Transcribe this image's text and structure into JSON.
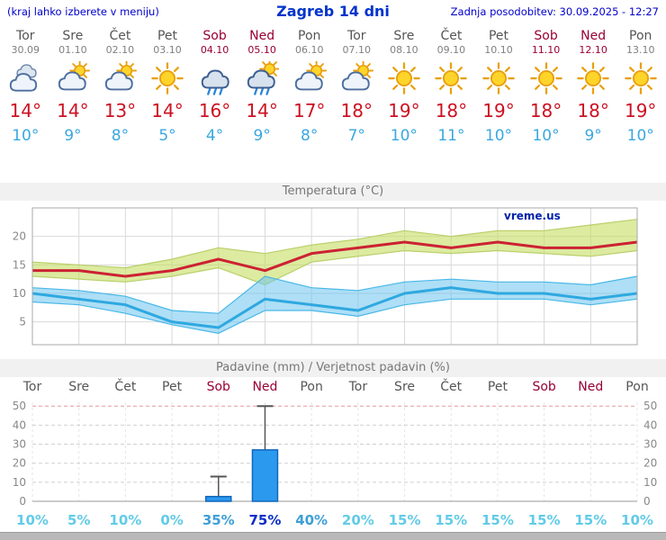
{
  "header": {
    "menu_note": "(kraj lahko izberete v meniju)",
    "title": "Zagreb 14 dni",
    "last_update": "Zadnja posodobitev: 30.09.2025 - 12:27"
  },
  "days": [
    {
      "name": "Tor",
      "date": "30.09",
      "weekend": false,
      "icon": "cloudy",
      "high": "14°",
      "low": "10°"
    },
    {
      "name": "Sre",
      "date": "01.10",
      "weekend": false,
      "icon": "partly",
      "high": "14°",
      "low": "9°"
    },
    {
      "name": "Čet",
      "date": "02.10",
      "weekend": false,
      "icon": "partly",
      "high": "13°",
      "low": "8°"
    },
    {
      "name": "Pet",
      "date": "03.10",
      "weekend": false,
      "icon": "sun",
      "high": "14°",
      "low": "5°"
    },
    {
      "name": "Sob",
      "date": "04.10",
      "weekend": true,
      "icon": "rain",
      "high": "16°",
      "low": "4°"
    },
    {
      "name": "Ned",
      "date": "05.10",
      "weekend": true,
      "icon": "rain-sun",
      "high": "14°",
      "low": "9°"
    },
    {
      "name": "Pon",
      "date": "06.10",
      "weekend": false,
      "icon": "partly",
      "high": "17°",
      "low": "8°"
    },
    {
      "name": "Tor",
      "date": "07.10",
      "weekend": false,
      "icon": "partly",
      "high": "18°",
      "low": "7°"
    },
    {
      "name": "Sre",
      "date": "08.10",
      "weekend": false,
      "icon": "sun",
      "high": "19°",
      "low": "10°"
    },
    {
      "name": "Čet",
      "date": "09.10",
      "weekend": false,
      "icon": "sun",
      "high": "18°",
      "low": "11°"
    },
    {
      "name": "Pet",
      "date": "10.10",
      "weekend": false,
      "icon": "sun",
      "high": "19°",
      "low": "10°"
    },
    {
      "name": "Sob",
      "date": "11.10",
      "weekend": true,
      "icon": "sun",
      "high": "18°",
      "low": "10°"
    },
    {
      "name": "Ned",
      "date": "12.10",
      "weekend": true,
      "icon": "sun",
      "high": "18°",
      "low": "9°"
    },
    {
      "name": "Pon",
      "date": "13.10",
      "weekend": false,
      "icon": "sun",
      "high": "19°",
      "low": "10°"
    }
  ],
  "chart_data": [
    {
      "type": "line",
      "title": "Temperatura (°C)",
      "categories": [
        "Tor",
        "Sre",
        "Čet",
        "Pet",
        "Sob",
        "Ned",
        "Pon",
        "Tor",
        "Sre",
        "Čet",
        "Pet",
        "Sob",
        "Ned",
        "Pon"
      ],
      "ylim": [
        1,
        25
      ],
      "yticks": [
        5,
        10,
        15,
        20
      ],
      "legend_position": "none",
      "grid": true,
      "series": [
        {
          "name": "max temperatura",
          "color": "#cc2233",
          "width": 3,
          "values": [
            14,
            14,
            13,
            14,
            16,
            14,
            17,
            18,
            19,
            18,
            19,
            18,
            18,
            19
          ]
        },
        {
          "name": "min temperatura",
          "color": "#2fa8e0",
          "width": 3,
          "values": [
            10,
            9,
            8,
            5,
            4,
            9,
            8,
            7,
            10,
            11,
            10,
            10,
            9,
            10
          ]
        }
      ],
      "bands": [
        {
          "name": "max-range",
          "fill": "rgba(196,222,96,0.60)",
          "edge": "#b9cf6a",
          "upper": [
            15.5,
            15,
            14.5,
            16,
            18,
            17,
            18.5,
            19.5,
            21,
            20,
            21,
            21,
            22,
            23
          ],
          "lower": [
            13,
            12.5,
            12,
            13,
            14.5,
            11.5,
            15.5,
            16.5,
            17.5,
            17,
            17.5,
            17,
            16.5,
            17.5
          ]
        },
        {
          "name": "min-range",
          "fill": "rgba(108,196,238,0.55)",
          "edge": "#49b7e8",
          "upper": [
            11,
            10.5,
            9.5,
            7,
            6.5,
            13,
            11,
            10.5,
            12,
            12.5,
            12,
            12,
            11.5,
            13
          ],
          "lower": [
            8.5,
            8,
            6.5,
            4.5,
            3,
            7,
            7,
            6,
            8,
            9,
            9,
            9,
            8,
            9
          ]
        }
      ],
      "watermark": "vreme.us"
    },
    {
      "type": "bar",
      "title": "Padavine (mm) / Verjetnost padavin (%)",
      "categories": [
        "Tor",
        "Sre",
        "Čet",
        "Pet",
        "Sob",
        "Ned",
        "Pon",
        "Tor",
        "Sre",
        "Čet",
        "Pet",
        "Sob",
        "Ned",
        "Pon"
      ],
      "ylim": [
        0,
        52
      ],
      "yticks": [
        0,
        10,
        20,
        30,
        40,
        50
      ],
      "values": [
        0,
        0,
        0,
        0,
        2.5,
        27,
        0,
        0,
        0,
        0,
        0,
        0,
        0,
        0
      ],
      "range_max": [
        0,
        0,
        0,
        0,
        13,
        50,
        0,
        0,
        0,
        0,
        0,
        0,
        0,
        0
      ],
      "bar_color": "#2b99ee",
      "bar_border": "#1166bb",
      "probabilities": [
        10,
        5,
        10,
        0,
        35,
        75,
        40,
        20,
        15,
        15,
        15,
        15,
        15,
        10
      ],
      "probability_suffix": "%"
    }
  ],
  "colors": {
    "note_blue": "#0000cc",
    "title_blue": "#0033cc",
    "weekend_red": "#990033",
    "weekday_gray": "#555555",
    "date_gray": "#808080",
    "temp_high": "#cc1122",
    "temp_low": "#3aa7e0",
    "prob_low": "#62cbe8",
    "prob_mid": "#3e9fd6",
    "prob_high": "#0a2ec8",
    "chart_title_gray": "#777777",
    "watermark_blue": "#0022aa"
  }
}
